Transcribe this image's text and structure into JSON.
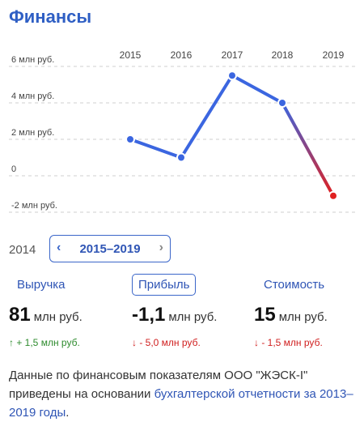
{
  "title": "Финансы",
  "chart_data": {
    "type": "line",
    "x": [
      "2015",
      "2016",
      "2017",
      "2018",
      "2019"
    ],
    "y": [
      2.0,
      1.0,
      5.5,
      4.0,
      -1.1
    ],
    "y_ticks": [
      "6 млн руб.",
      "4 млн руб.",
      "2 млн руб.",
      "0",
      "-2 млн руб."
    ],
    "y_tick_values": [
      6,
      4,
      2,
      0,
      -2
    ],
    "ylim": [
      -2,
      6
    ],
    "grid": true,
    "colors": {
      "line": "#3b66e0",
      "negative": "#e02020",
      "grid": "#cfcfcf"
    }
  },
  "period": {
    "left_year": "2014",
    "range_label": "2015–2019",
    "prev_icon": "chevron-left-icon",
    "next_icon": "chevron-right-icon"
  },
  "tabs": {
    "revenue": "Выручка",
    "profit": "Прибыль",
    "value": "Стоимость"
  },
  "metrics": {
    "revenue": {
      "value": "81",
      "unit": "млн руб.",
      "delta": "↑ + 1,5 млн руб."
    },
    "profit": {
      "value": "-1,1",
      "unit": "млн руб.",
      "delta": "↓ - 5,0 млн руб."
    },
    "value": {
      "value": "15",
      "unit": "млн руб.",
      "delta": "↓ - 1,5 млн руб."
    }
  },
  "note": {
    "text": "Данные по финансовым показателям ООО \"ЖЭСК-I\" приведены на основании ",
    "link": "бухгалтерской отчетности за 2013–2019 годы",
    "end": "."
  }
}
